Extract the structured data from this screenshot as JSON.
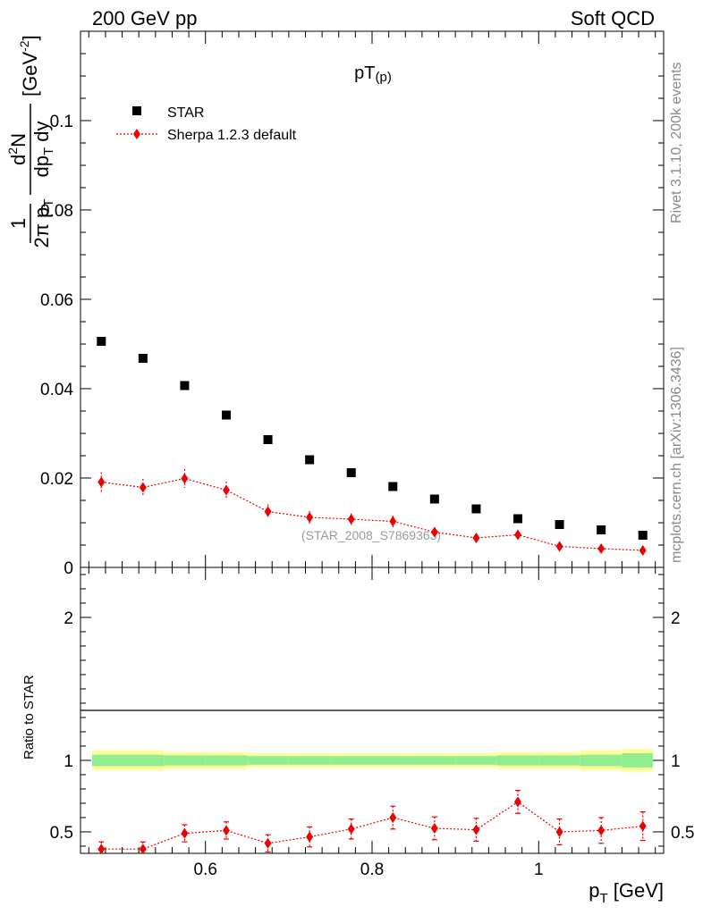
{
  "header": {
    "left": "200 GeV pp",
    "right": "Soft QCD"
  },
  "side_labels": {
    "rivet": "Rivet 3.1.10,  200k events",
    "mcplots": "mcplots.cern.ch [arXiv:1306.3436]"
  },
  "chart_data": [
    {
      "type": "scatter",
      "title": "pT(p)",
      "title_main": "pT",
      "title_sub": "(p)",
      "ylabel": "1/(2π pT) d²N/(dpT dy) [GeV⁻²]",
      "ylabel_parts": {
        "frac1_num": "1",
        "frac1_den_a": "2π p",
        "frac1_den_sub": "T",
        "frac2_num": "d",
        "frac2_num_sup": "2",
        "frac2_num_b": "N",
        "frac2_den_a": "dp",
        "frac2_den_sub": "T",
        "frac2_den_b": " dy",
        "unit": "[GeV",
        "unit_sup": "-2",
        "unit_close": "]"
      },
      "xlim": [
        0.45,
        1.15
      ],
      "ylim": [
        0,
        0.12
      ],
      "yticks": [
        0,
        0.02,
        0.04,
        0.06,
        0.08,
        0.1
      ],
      "ytick_labels": [
        "0",
        "0.02",
        "0.04",
        "0.06",
        "0.08",
        "0.1"
      ],
      "watermark": "(STAR_2008_S7869363)",
      "legend": [
        {
          "label": "STAR",
          "marker": "square",
          "color": "#000000"
        },
        {
          "label": "Sherpa 1.2.3 default",
          "marker": "diamond",
          "color": "#ee0000"
        }
      ],
      "series": [
        {
          "name": "STAR",
          "color": "#000000",
          "x": [
            0.475,
            0.525,
            0.575,
            0.625,
            0.675,
            0.725,
            0.775,
            0.825,
            0.875,
            0.925,
            0.975,
            1.025,
            1.075,
            1.125
          ],
          "y": [
            0.0506,
            0.0468,
            0.0407,
            0.0341,
            0.0286,
            0.0241,
            0.0212,
            0.0181,
            0.0153,
            0.0131,
            0.0109,
            0.0096,
            0.0084,
            0.0072
          ]
        },
        {
          "name": "Sherpa 1.2.3 default",
          "color": "#ee0000",
          "x": [
            0.475,
            0.525,
            0.575,
            0.625,
            0.675,
            0.725,
            0.775,
            0.825,
            0.875,
            0.925,
            0.975,
            1.025,
            1.075,
            1.125
          ],
          "y": [
            0.0191,
            0.0179,
            0.0199,
            0.0173,
            0.0125,
            0.0112,
            0.0108,
            0.0103,
            0.0079,
            0.0066,
            0.0073,
            0.0047,
            0.0042,
            0.0038
          ],
          "yerr": [
            0.0022,
            0.0019,
            0.0021,
            0.0019,
            0.0016,
            0.0014,
            0.0013,
            0.0013,
            0.0011,
            0.001,
            0.0011,
            0.0009,
            0.0009,
            0.0008
          ]
        }
      ]
    },
    {
      "type": "scatter",
      "ylabel": "Ratio to STAR",
      "xlabel": "p",
      "xlabel_sub": "T",
      "xlabel_unit": " [GeV]",
      "xlim": [
        0.45,
        1.15
      ],
      "ylim": [
        0.35,
        2.35
      ],
      "xticks": [
        0.6,
        0.8,
        1.0
      ],
      "xtick_labels": [
        "0.6",
        "0.8",
        "1"
      ],
      "yticks": [
        0.5,
        1,
        2
      ],
      "ytick_labels": [
        "0.5",
        "1",
        "2"
      ],
      "bands": {
        "bin_edges": [
          0.45,
          0.5,
          0.55,
          0.6,
          0.65,
          0.7,
          0.75,
          0.8,
          0.85,
          0.9,
          0.95,
          1.0,
          1.05,
          1.1,
          1.15
        ],
        "yellow_halfwidth": [
          0.07,
          0.07,
          0.06,
          0.06,
          0.05,
          0.05,
          0.05,
          0.05,
          0.05,
          0.05,
          0.06,
          0.06,
          0.07,
          0.08
        ],
        "green_halfwidth": [
          0.04,
          0.04,
          0.035,
          0.035,
          0.03,
          0.03,
          0.03,
          0.03,
          0.03,
          0.03,
          0.035,
          0.035,
          0.04,
          0.05
        ],
        "yellow_color": "#ffff99",
        "green_color": "#90ee90"
      },
      "series": [
        {
          "name": "Sherpa 1.2.3 default",
          "color": "#ee0000",
          "x": [
            0.475,
            0.525,
            0.575,
            0.625,
            0.675,
            0.725,
            0.775,
            0.825,
            0.875,
            0.925,
            0.975,
            1.025,
            1.075,
            1.125
          ],
          "y": [
            0.38,
            0.38,
            0.49,
            0.51,
            0.42,
            0.465,
            0.52,
            0.6,
            0.525,
            0.515,
            0.71,
            0.5,
            0.51,
            0.54
          ],
          "yerr": [
            0.05,
            0.05,
            0.06,
            0.06,
            0.06,
            0.07,
            0.07,
            0.08,
            0.08,
            0.08,
            0.08,
            0.09,
            0.09,
            0.1
          ]
        }
      ]
    }
  ]
}
